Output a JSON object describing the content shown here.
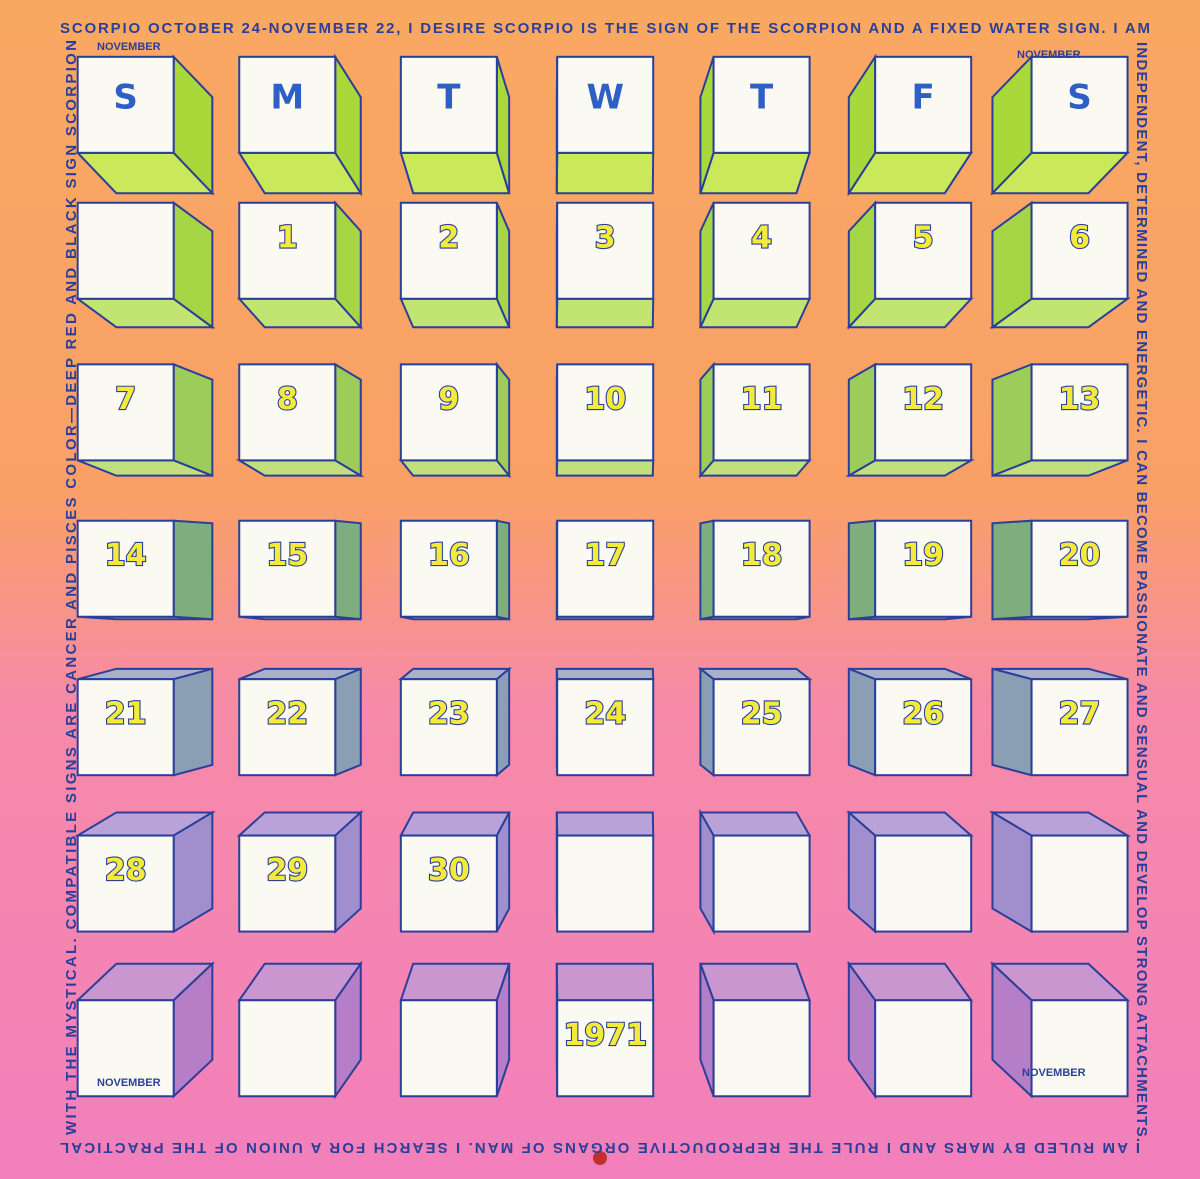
{
  "border": {
    "top": "SCORPIO  OCTOBER 24-NOVEMBER 22, I  DESIRE  SCORPIO  IS  THE  SIGN  OF  THE SCORPION AND A FIXED WATER SIGN. I AM",
    "right": "INDEPENDENT, DETERMINED AND ENERGETIC.  I CAN BECOME PASSIONATE AND SENSUAL AND DEVELOP STRONG ATTACHMENTS.",
    "bottom": "I AM RULED BY MARS AND I RULE THE REPRODUCTIVE ORGANS OF MAN. I SEARCH FOR A UNION OF THE PRACTICAL",
    "left": "WITH THE MYSTICAL. COMPATIBLE SIGNS ARE CANCER AND PISCES COLOR—DEEP RED AND BLACK SIGN SCORPION"
  },
  "corner_labels": [
    "NOVEMBER",
    "NOVEMBER",
    "NOVEMBER",
    "NOVEMBER"
  ],
  "grid": [
    [
      "S",
      "M",
      "T",
      "W",
      "T",
      "F",
      "S"
    ],
    [
      null,
      "1",
      "2",
      "3",
      "4",
      "5",
      "6"
    ],
    [
      "7",
      "8",
      "9",
      "10",
      "11",
      "12",
      "13"
    ],
    [
      "14",
      "15",
      "16",
      "17",
      "18",
      "19",
      "20"
    ],
    [
      "21",
      "22",
      "23",
      "24",
      "25",
      "26",
      "27"
    ],
    [
      "28",
      "29",
      "30",
      null,
      null,
      null,
      null
    ],
    [
      null,
      null,
      null,
      "1971",
      null,
      null,
      null
    ]
  ]
}
